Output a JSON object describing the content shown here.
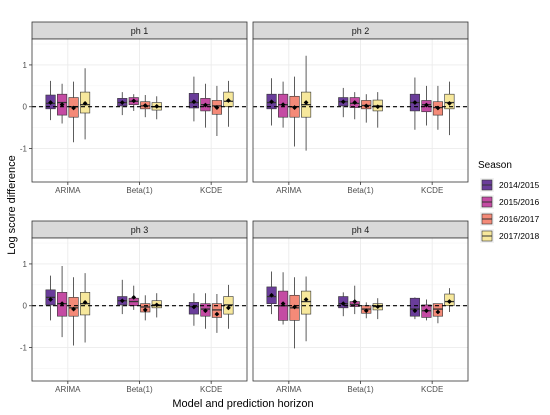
{
  "colors": {
    "panel_border": "#333333",
    "strip_fill": "#d9d9d9",
    "grid_major": "#ebebeb",
    "grid_minor": "#f5f5f5",
    "whisker": "#333333",
    "median": "#333333",
    "mean_point": "#000000",
    "zero_line": "#000000"
  },
  "chart_data": {
    "type": "boxplot",
    "xlabel": "Model and prediction horizon",
    "ylabel": "Log score difference",
    "ylim": [
      -1.8,
      1.62
    ],
    "y_ticks": [
      -1,
      0,
      1
    ],
    "x_categories": [
      "ARIMA",
      "Beta(1)",
      "KCDE"
    ],
    "reference_line": {
      "y": 0,
      "style": "dashed"
    },
    "legend": {
      "title": "Season",
      "position": "right",
      "entries": [
        {
          "label": "2014/2015",
          "color": "#6a3d9a"
        },
        {
          "label": "2015/2016",
          "color": "#c44ba3"
        },
        {
          "label": "2016/2017",
          "color": "#f48a78"
        },
        {
          "label": "2017/2018",
          "color": "#f7e89c"
        }
      ]
    },
    "facets": [
      {
        "label": "ph 1",
        "groups": [
          {
            "model": "ARIMA",
            "boxes": [
              {
                "season": "2014/2015",
                "min": -0.32,
                "q1": -0.05,
                "median": 0.08,
                "q3": 0.28,
                "max": 0.62,
                "mean": 0.1
              },
              {
                "season": "2015/2016",
                "min": -0.4,
                "q1": -0.2,
                "median": 0.1,
                "q3": 0.3,
                "max": 0.55,
                "mean": 0.05
              },
              {
                "season": "2016/2017",
                "min": -0.85,
                "q1": -0.25,
                "median": 0.0,
                "q3": 0.22,
                "max": 0.6,
                "mean": -0.03
              },
              {
                "season": "2017/2018",
                "min": -0.78,
                "q1": -0.15,
                "median": 0.05,
                "q3": 0.35,
                "max": 0.92,
                "mean": 0.08
              }
            ]
          },
          {
            "model": "Beta(1)",
            "boxes": [
              {
                "season": "2014/2015",
                "min": -0.2,
                "q1": 0.02,
                "median": 0.1,
                "q3": 0.2,
                "max": 0.35,
                "mean": 0.1
              },
              {
                "season": "2015/2016",
                "min": -0.1,
                "q1": 0.05,
                "median": 0.13,
                "q3": 0.22,
                "max": 0.3,
                "mean": 0.14
              },
              {
                "season": "2016/2017",
                "min": -0.25,
                "q1": -0.05,
                "median": 0.02,
                "q3": 0.12,
                "max": 0.28,
                "mean": 0.03
              },
              {
                "season": "2017/2018",
                "min": -0.3,
                "q1": -0.08,
                "median": 0.0,
                "q3": 0.1,
                "max": 0.25,
                "mean": 0.01
              }
            ]
          },
          {
            "model": "KCDE",
            "boxes": [
              {
                "season": "2014/2015",
                "min": -0.35,
                "q1": -0.03,
                "median": 0.1,
                "q3": 0.32,
                "max": 0.72,
                "mean": 0.12
              },
              {
                "season": "2015/2016",
                "min": -0.5,
                "q1": -0.1,
                "median": 0.05,
                "q3": 0.2,
                "max": 0.55,
                "mean": 0.04
              },
              {
                "season": "2016/2017",
                "min": -0.7,
                "q1": -0.18,
                "median": 0.02,
                "q3": 0.15,
                "max": 0.5,
                "mean": -0.02
              },
              {
                "season": "2017/2018",
                "min": -0.48,
                "q1": 0.0,
                "median": 0.13,
                "q3": 0.35,
                "max": 0.62,
                "mean": 0.15
              }
            ]
          }
        ]
      },
      {
        "label": "ph 2",
        "groups": [
          {
            "model": "ARIMA",
            "boxes": [
              {
                "season": "2014/2015",
                "min": -0.45,
                "q1": -0.05,
                "median": 0.1,
                "q3": 0.3,
                "max": 0.68,
                "mean": 0.12
              },
              {
                "season": "2015/2016",
                "min": -0.5,
                "q1": -0.25,
                "median": 0.05,
                "q3": 0.3,
                "max": 0.6,
                "mean": 0.05
              },
              {
                "season": "2016/2017",
                "min": -0.95,
                "q1": -0.25,
                "median": 0.0,
                "q3": 0.25,
                "max": 0.72,
                "mean": -0.02
              },
              {
                "season": "2017/2018",
                "min": -1.05,
                "q1": -0.25,
                "median": 0.05,
                "q3": 0.35,
                "max": 1.22,
                "mean": 0.1
              }
            ]
          },
          {
            "model": "Beta(1)",
            "boxes": [
              {
                "season": "2014/2015",
                "min": -0.25,
                "q1": 0.02,
                "median": 0.12,
                "q3": 0.22,
                "max": 0.45,
                "mean": 0.12
              },
              {
                "season": "2015/2016",
                "min": -0.3,
                "q1": -0.02,
                "median": 0.08,
                "q3": 0.22,
                "max": 0.35,
                "mean": 0.1
              },
              {
                "season": "2016/2017",
                "min": -0.38,
                "q1": -0.05,
                "median": 0.03,
                "q3": 0.15,
                "max": 0.3,
                "mean": 0.02
              },
              {
                "season": "2017/2018",
                "min": -0.5,
                "q1": -0.1,
                "median": 0.02,
                "q3": 0.16,
                "max": 0.35,
                "mean": 0.0
              }
            ]
          },
          {
            "model": "KCDE",
            "boxes": [
              {
                "season": "2014/2015",
                "min": -0.55,
                "q1": -0.1,
                "median": 0.1,
                "q3": 0.3,
                "max": 0.7,
                "mean": 0.1
              },
              {
                "season": "2015/2016",
                "min": -0.45,
                "q1": -0.12,
                "median": 0.05,
                "q3": 0.15,
                "max": 0.5,
                "mean": 0.04
              },
              {
                "season": "2016/2017",
                "min": -0.55,
                "q1": -0.2,
                "median": -0.02,
                "q3": 0.12,
                "max": 0.5,
                "mean": -0.03
              },
              {
                "season": "2017/2018",
                "min": -0.68,
                "q1": -0.05,
                "median": 0.1,
                "q3": 0.3,
                "max": 0.6,
                "mean": 0.08
              }
            ]
          }
        ]
      },
      {
        "label": "ph 3",
        "groups": [
          {
            "model": "ARIMA",
            "boxes": [
              {
                "season": "2014/2015",
                "min": -0.35,
                "q1": 0.02,
                "median": 0.2,
                "q3": 0.38,
                "max": 0.72,
                "mean": 0.15
              },
              {
                "season": "2015/2016",
                "min": -0.75,
                "q1": -0.25,
                "median": 0.05,
                "q3": 0.32,
                "max": 0.95,
                "mean": 0.05
              },
              {
                "season": "2016/2017",
                "min": -0.95,
                "q1": -0.25,
                "median": -0.05,
                "q3": 0.2,
                "max": 0.68,
                "mean": -0.08
              },
              {
                "season": "2017/2018",
                "min": -0.88,
                "q1": -0.22,
                "median": 0.05,
                "q3": 0.32,
                "max": 0.78,
                "mean": 0.08
              }
            ]
          },
          {
            "model": "Beta(1)",
            "boxes": [
              {
                "season": "2014/2015",
                "min": -0.2,
                "q1": 0.02,
                "median": 0.12,
                "q3": 0.22,
                "max": 0.62,
                "mean": 0.12
              },
              {
                "season": "2015/2016",
                "min": -0.1,
                "q1": 0.0,
                "median": 0.1,
                "q3": 0.18,
                "max": 0.48,
                "mean": 0.2
              },
              {
                "season": "2016/2017",
                "min": -0.35,
                "q1": -0.15,
                "median": -0.03,
                "q3": 0.05,
                "max": 0.25,
                "mean": -0.1
              },
              {
                "season": "2017/2018",
                "min": -0.28,
                "q1": -0.05,
                "median": 0.02,
                "q3": 0.12,
                "max": 0.3,
                "mean": 0.02
              }
            ]
          },
          {
            "model": "KCDE",
            "boxes": [
              {
                "season": "2014/2015",
                "min": -0.48,
                "q1": -0.2,
                "median": -0.02,
                "q3": 0.08,
                "max": 0.3,
                "mean": -0.03
              },
              {
                "season": "2015/2016",
                "min": -0.55,
                "q1": -0.25,
                "median": -0.08,
                "q3": 0.05,
                "max": 0.3,
                "mean": -0.12
              },
              {
                "season": "2016/2017",
                "min": -0.65,
                "q1": -0.28,
                "median": -0.1,
                "q3": 0.05,
                "max": 0.28,
                "mean": -0.2
              },
              {
                "season": "2017/2018",
                "min": -0.55,
                "q1": -0.2,
                "median": 0.02,
                "q3": 0.22,
                "max": 0.5,
                "mean": -0.05
              }
            ]
          }
        ]
      },
      {
        "label": "ph 4",
        "groups": [
          {
            "model": "ARIMA",
            "boxes": [
              {
                "season": "2014/2015",
                "min": -0.2,
                "q1": 0.05,
                "median": 0.22,
                "q3": 0.45,
                "max": 0.82,
                "mean": 0.25
              },
              {
                "season": "2015/2016",
                "min": -0.45,
                "q1": -0.35,
                "median": 0.0,
                "q3": 0.35,
                "max": 0.8,
                "mean": 0.05
              },
              {
                "season": "2016/2017",
                "min": -1.02,
                "q1": -0.35,
                "median": -0.05,
                "q3": 0.25,
                "max": 0.68,
                "mean": -0.03
              },
              {
                "season": "2017/2018",
                "min": -0.85,
                "q1": -0.2,
                "median": 0.1,
                "q3": 0.35,
                "max": 0.7,
                "mean": 0.15
              }
            ]
          },
          {
            "model": "Beta(1)",
            "boxes": [
              {
                "season": "2014/2015",
                "min": -0.25,
                "q1": -0.05,
                "median": 0.05,
                "q3": 0.22,
                "max": 0.32,
                "mean": 0.05
              },
              {
                "season": "2015/2016",
                "min": -0.2,
                "q1": -0.02,
                "median": 0.03,
                "q3": 0.1,
                "max": 0.48,
                "mean": 0.1
              },
              {
                "season": "2016/2017",
                "min": -0.3,
                "q1": -0.18,
                "median": -0.08,
                "q3": 0.0,
                "max": 0.08,
                "mean": -0.12
              },
              {
                "season": "2017/2018",
                "min": -0.32,
                "q1": -0.1,
                "median": -0.02,
                "q3": 0.05,
                "max": 0.18,
                "mean": -0.02
              }
            ]
          },
          {
            "model": "KCDE",
            "boxes": [
              {
                "season": "2014/2015",
                "min": -0.32,
                "q1": -0.25,
                "median": -0.08,
                "q3": 0.18,
                "max": 0.2,
                "mean": -0.12
              },
              {
                "season": "2015/2016",
                "min": -0.35,
                "q1": -0.28,
                "median": -0.12,
                "q3": 0.02,
                "max": 0.15,
                "mean": -0.12
              },
              {
                "season": "2016/2017",
                "min": -0.42,
                "q1": -0.25,
                "median": -0.08,
                "q3": 0.05,
                "max": 0.05,
                "mean": -0.15
              },
              {
                "season": "2017/2018",
                "min": -0.15,
                "q1": 0.0,
                "median": 0.1,
                "q3": 0.28,
                "max": 0.42,
                "mean": 0.1
              }
            ]
          }
        ]
      }
    ]
  }
}
